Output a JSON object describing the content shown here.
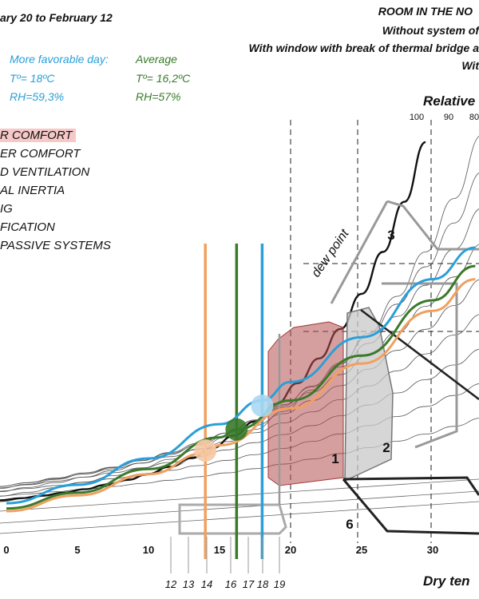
{
  "header": {
    "period": "ary 20 to February 12",
    "room_line": "ROOM IN THE NO",
    "system_line": "Without system of",
    "window_line": "With window with break of thermal bridge a",
    "wit_line": "Wit"
  },
  "days": {
    "favorable": {
      "label": "More favorable day:",
      "temp": "Tº= 18ºC",
      "rh": "RH=59,3%",
      "color": "#2a9fd8"
    },
    "average": {
      "label": "Average",
      "temp": "Tº= 16,2ºC",
      "rh": "RH=57%",
      "color": "#3a7a2a"
    }
  },
  "legend": [
    {
      "label": "R COMFORT",
      "highlighted": true
    },
    {
      "label": "ER COMFORT",
      "highlighted": false
    },
    {
      "label": "D VENTILATION",
      "highlighted": false
    },
    {
      "label": "AL INERTIA",
      "highlighted": false
    },
    {
      "label": "IG",
      "highlighted": false
    },
    {
      "label": "FICATION",
      "highlighted": false
    },
    {
      "label": "PASSIVE SYSTEMS",
      "highlighted": false
    }
  ],
  "chart_data": {
    "type": "line",
    "title": "",
    "xlabel": "Dry ten",
    "ylabel": "Relative",
    "xlim": [
      -0.5,
      33.5
    ],
    "x_ticks": [
      0,
      5,
      10,
      15,
      20,
      25,
      30
    ],
    "x_ticks_daily": [
      12,
      13,
      14,
      16,
      17,
      18,
      19
    ],
    "rh_ticks": [
      100,
      90,
      80
    ],
    "zones": [
      {
        "label": "1",
        "name": "comfort",
        "color": "#b45050"
      },
      {
        "label": "2",
        "name": "extended comfort",
        "color": "#888888"
      },
      {
        "label": "3",
        "name": "",
        "color": "#888888"
      },
      {
        "label": "6",
        "name": "",
        "color": "#222222"
      }
    ],
    "annotations": [
      "dew point"
    ],
    "series": [
      {
        "name": "More favorable day",
        "color": "#2a9fd8",
        "x": [
          0,
          5,
          10,
          15,
          18,
          20,
          25,
          30,
          33
        ],
        "rh_line_y": [
          0.03,
          0.1,
          0.2,
          0.33,
          0.42,
          0.49,
          0.66,
          0.88,
          1.0
        ]
      },
      {
        "name": "Average",
        "color": "#3a7a2a",
        "x": [
          0,
          5,
          10,
          15,
          16.2,
          20,
          25,
          30,
          33
        ],
        "rh_line_y": [
          0.01,
          0.07,
          0.16,
          0.28,
          0.31,
          0.42,
          0.59,
          0.8,
          0.93
        ]
      },
      {
        "name": "",
        "color": "#f0a060",
        "x": [
          0,
          5,
          10,
          14,
          15,
          20,
          25,
          30,
          33
        ],
        "rh_line_y": [
          0.0,
          0.06,
          0.14,
          0.22,
          0.25,
          0.39,
          0.56,
          0.76,
          0.88
        ]
      }
    ],
    "day_markers": [
      {
        "x": 14,
        "color": "#f0a060"
      },
      {
        "x": 16.2,
        "color": "#3a7a2a"
      },
      {
        "x": 18,
        "color": "#2a9fd8"
      }
    ]
  }
}
